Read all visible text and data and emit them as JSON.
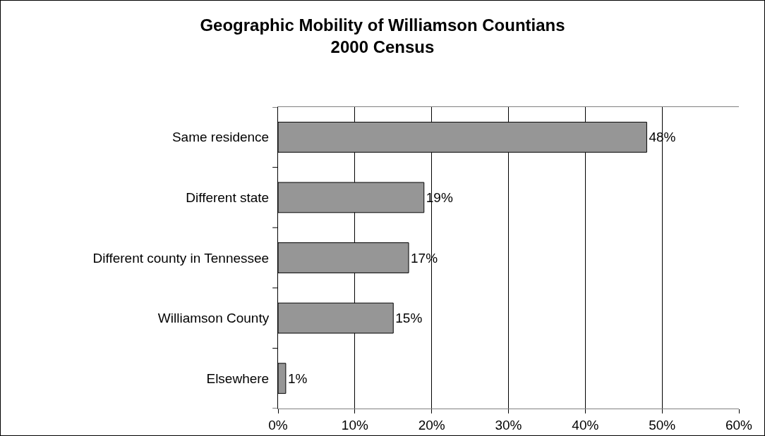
{
  "chart_data": {
    "type": "bar",
    "orientation": "horizontal",
    "title": "Geographic Mobility of Williamson Countians\n2000 Census",
    "categories": [
      "Same residence",
      "Different state",
      "Different county in Tennessee",
      "Williamson County",
      "Elsewhere"
    ],
    "values": [
      48,
      19,
      17,
      15,
      1
    ],
    "value_labels": [
      "48%",
      "19%",
      "17%",
      "15%",
      "1%"
    ],
    "color": "#969696",
    "xlim": [
      0,
      60
    ],
    "xticks": [
      {
        "value": 0,
        "label": "0%"
      },
      {
        "value": 10,
        "label": "10%"
      },
      {
        "value": 20,
        "label": "20%"
      },
      {
        "value": 30,
        "label": "30%"
      },
      {
        "value": 40,
        "label": "40%"
      },
      {
        "value": 50,
        "label": "50%"
      },
      {
        "value": 60,
        "label": "60%"
      }
    ],
    "grid": "x",
    "legend": false
  }
}
